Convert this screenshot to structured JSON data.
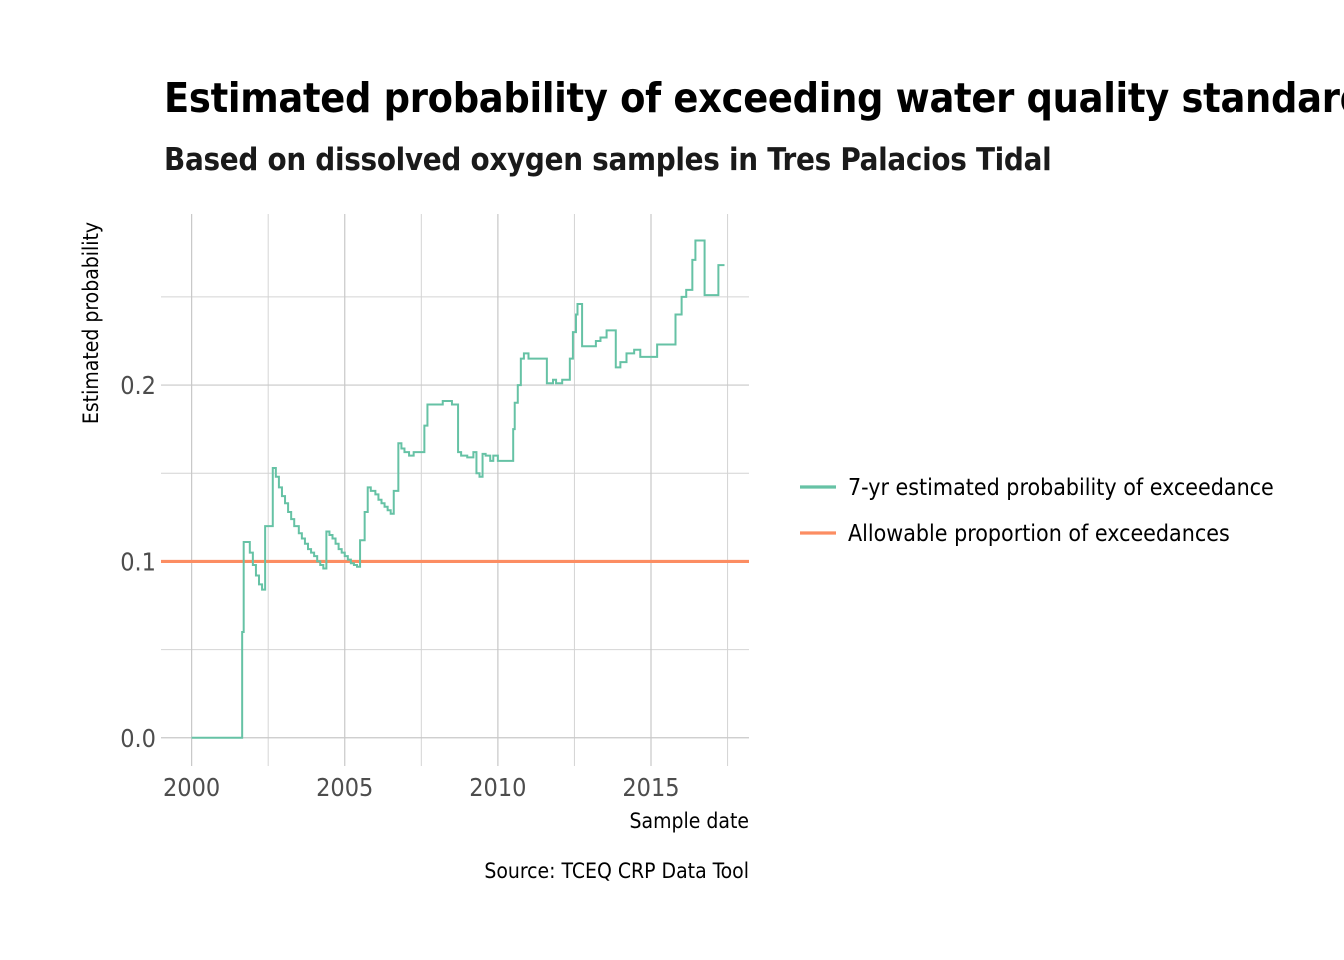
{
  "chart_data": {
    "type": "line",
    "title": "Estimated probability of exceeding water quality standard",
    "subtitle": "Based on dissolved oxygen samples in Tres Palacios Tidal",
    "xlabel": "Sample date",
    "ylabel": "Estimated probability",
    "caption": "Source: TCEQ CRP Data Tool",
    "xlim": [
      1999.0,
      2018.2
    ],
    "ylim": [
      -0.016,
      0.297
    ],
    "x_ticks": [
      2000,
      2005,
      2010,
      2015
    ],
    "x_tick_labels": [
      "2000",
      "2005",
      "2010",
      "2015"
    ],
    "y_ticks": [
      0.0,
      0.1,
      0.2
    ],
    "y_tick_labels": [
      "0.0",
      "0.1",
      "0.2"
    ],
    "grid": true,
    "legend_position": "right",
    "series": [
      {
        "name": "7-yr estimated probability of exceedance",
        "color": "#66c2a5",
        "step": true,
        "points": [
          [
            2000.0,
            0.0
          ],
          [
            2001.6,
            0.0
          ],
          [
            2001.65,
            0.06
          ],
          [
            2001.7,
            0.111
          ],
          [
            2001.9,
            0.105
          ],
          [
            2002.0,
            0.098
          ],
          [
            2002.1,
            0.092
          ],
          [
            2002.2,
            0.087
          ],
          [
            2002.3,
            0.084
          ],
          [
            2002.4,
            0.12
          ],
          [
            2002.65,
            0.153
          ],
          [
            2002.75,
            0.148
          ],
          [
            2002.85,
            0.142
          ],
          [
            2002.95,
            0.137
          ],
          [
            2003.05,
            0.133
          ],
          [
            2003.15,
            0.128
          ],
          [
            2003.25,
            0.124
          ],
          [
            2003.35,
            0.12
          ],
          [
            2003.5,
            0.116
          ],
          [
            2003.6,
            0.113
          ],
          [
            2003.7,
            0.11
          ],
          [
            2003.8,
            0.107
          ],
          [
            2003.9,
            0.105
          ],
          [
            2004.0,
            0.103
          ],
          [
            2004.1,
            0.1
          ],
          [
            2004.2,
            0.098
          ],
          [
            2004.3,
            0.096
          ],
          [
            2004.4,
            0.117
          ],
          [
            2004.5,
            0.115
          ],
          [
            2004.6,
            0.113
          ],
          [
            2004.7,
            0.11
          ],
          [
            2004.8,
            0.107
          ],
          [
            2004.9,
            0.105
          ],
          [
            2005.0,
            0.103
          ],
          [
            2005.1,
            0.101
          ],
          [
            2005.2,
            0.099
          ],
          [
            2005.3,
            0.098
          ],
          [
            2005.4,
            0.097
          ],
          [
            2005.5,
            0.112
          ],
          [
            2005.65,
            0.128
          ],
          [
            2005.75,
            0.142
          ],
          [
            2005.85,
            0.14
          ],
          [
            2006.0,
            0.138
          ],
          [
            2006.1,
            0.135
          ],
          [
            2006.2,
            0.133
          ],
          [
            2006.3,
            0.131
          ],
          [
            2006.4,
            0.129
          ],
          [
            2006.5,
            0.127
          ],
          [
            2006.6,
            0.14
          ],
          [
            2006.75,
            0.167
          ],
          [
            2006.85,
            0.164
          ],
          [
            2006.95,
            0.162
          ],
          [
            2007.1,
            0.16
          ],
          [
            2007.25,
            0.162
          ],
          [
            2007.6,
            0.177
          ],
          [
            2007.7,
            0.189
          ],
          [
            2008.2,
            0.191
          ],
          [
            2008.5,
            0.189
          ],
          [
            2008.7,
            0.162
          ],
          [
            2008.8,
            0.16
          ],
          [
            2009.0,
            0.159
          ],
          [
            2009.2,
            0.162
          ],
          [
            2009.3,
            0.15
          ],
          [
            2009.4,
            0.148
          ],
          [
            2009.5,
            0.161
          ],
          [
            2009.6,
            0.16
          ],
          [
            2009.75,
            0.157
          ],
          [
            2009.85,
            0.16
          ],
          [
            2010.0,
            0.157
          ],
          [
            2010.5,
            0.175
          ],
          [
            2010.55,
            0.19
          ],
          [
            2010.65,
            0.2
          ],
          [
            2010.75,
            0.215
          ],
          [
            2010.85,
            0.218
          ],
          [
            2011.0,
            0.215
          ],
          [
            2011.6,
            0.201
          ],
          [
            2011.8,
            0.203
          ],
          [
            2011.9,
            0.201
          ],
          [
            2012.1,
            0.203
          ],
          [
            2012.35,
            0.215
          ],
          [
            2012.45,
            0.23
          ],
          [
            2012.55,
            0.24
          ],
          [
            2012.6,
            0.246
          ],
          [
            2012.75,
            0.222
          ],
          [
            2013.0,
            0.222
          ],
          [
            2013.2,
            0.225
          ],
          [
            2013.35,
            0.227
          ],
          [
            2013.55,
            0.231
          ],
          [
            2013.85,
            0.21
          ],
          [
            2014.0,
            0.213
          ],
          [
            2014.2,
            0.218
          ],
          [
            2014.45,
            0.22
          ],
          [
            2014.65,
            0.216
          ],
          [
            2015.2,
            0.223
          ],
          [
            2015.8,
            0.24
          ],
          [
            2016.0,
            0.25
          ],
          [
            2016.15,
            0.254
          ],
          [
            2016.35,
            0.271
          ],
          [
            2016.45,
            0.282
          ],
          [
            2016.75,
            0.251
          ],
          [
            2017.2,
            0.268
          ],
          [
            2017.4,
            0.268
          ]
        ]
      },
      {
        "name": "Allowable proportion of exceedances",
        "color": "#fc8d62",
        "constant": 0.1
      }
    ]
  }
}
